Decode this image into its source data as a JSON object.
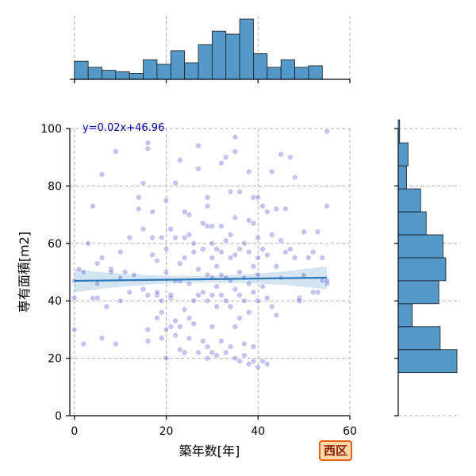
{
  "badge": {
    "label": "西区",
    "color": "#e8611a"
  },
  "chart_data": {
    "type": "scatter",
    "xlabel": "築年数[年]",
    "ylabel": "専有面積[m2]",
    "xlim": [
      -1,
      60
    ],
    "ylim": [
      0,
      100
    ],
    "x_ticks": [
      0,
      20,
      40,
      60
    ],
    "y_ticks": [
      0,
      20,
      40,
      60,
      80,
      100
    ],
    "grid": true,
    "annotation": "y=0.02x+46.96",
    "regression": {
      "slope": 0.02,
      "intercept": 46.96,
      "x_range": [
        0,
        55
      ],
      "ci_halfwidth_edge": 4,
      "ci_halfwidth_center": 1.2
    },
    "point_color": "#3a3ac8",
    "line_color": "#2a78b8",
    "hist_color": "#5499c7",
    "x_hist": {
      "bin_width": 3,
      "start": 0,
      "counts": [
        12,
        8,
        6,
        5,
        4,
        13,
        10,
        19,
        11,
        23,
        32,
        30,
        40,
        17,
        8,
        13,
        8,
        9
      ]
    },
    "y_hist": {
      "bin_width": 8,
      "start": 15,
      "counts": [
        42,
        30,
        10,
        29,
        34,
        32,
        20,
        16,
        6,
        7,
        1
      ]
    },
    "points": [
      [
        0,
        30
      ],
      [
        0,
        47
      ],
      [
        0,
        41
      ],
      [
        1,
        51
      ],
      [
        2,
        25
      ],
      [
        2,
        50
      ],
      [
        3,
        60
      ],
      [
        4,
        41
      ],
      [
        4,
        73
      ],
      [
        5,
        46
      ],
      [
        5,
        53
      ],
      [
        5,
        41
      ],
      [
        6,
        84
      ],
      [
        6,
        55
      ],
      [
        6,
        27
      ],
      [
        7,
        38
      ],
      [
        8,
        51
      ],
      [
        8,
        50
      ],
      [
        9,
        25
      ],
      [
        9,
        92
      ],
      [
        10,
        57
      ],
      [
        10,
        40
      ],
      [
        10,
        48
      ],
      [
        11,
        50
      ],
      [
        12,
        43
      ],
      [
        12,
        62
      ],
      [
        13,
        49
      ],
      [
        14,
        72
      ],
      [
        14,
        76
      ],
      [
        15,
        65
      ],
      [
        15,
        81
      ],
      [
        15,
        44
      ],
      [
        16,
        42
      ],
      [
        16,
        30
      ],
      [
        16,
        93
      ],
      [
        16,
        95
      ],
      [
        16,
        26
      ],
      [
        17,
        62
      ],
      [
        17,
        71
      ],
      [
        17,
        56
      ],
      [
        18,
        54
      ],
      [
        18,
        42
      ],
      [
        18,
        34
      ],
      [
        18,
        43
      ],
      [
        19,
        36
      ],
      [
        19,
        62
      ],
      [
        19,
        27
      ],
      [
        19,
        40
      ],
      [
        20,
        75
      ],
      [
        20,
        58
      ],
      [
        20,
        30
      ],
      [
        20,
        20
      ],
      [
        20,
        50
      ],
      [
        21,
        65
      ],
      [
        21,
        41
      ],
      [
        21,
        42
      ],
      [
        21,
        31
      ],
      [
        22,
        81
      ],
      [
        22,
        62
      ],
      [
        22,
        47
      ],
      [
        22,
        33
      ],
      [
        22,
        28
      ],
      [
        23,
        89
      ],
      [
        23,
        31
      ],
      [
        23,
        53
      ],
      [
        23,
        47
      ],
      [
        23,
        23
      ],
      [
        24,
        71
      ],
      [
        24,
        62
      ],
      [
        24,
        55
      ],
      [
        24,
        37
      ],
      [
        24,
        22
      ],
      [
        25,
        63
      ],
      [
        25,
        70
      ],
      [
        25,
        46
      ],
      [
        25,
        27
      ],
      [
        25,
        34
      ],
      [
        26,
        57
      ],
      [
        26,
        60
      ],
      [
        26,
        40
      ],
      [
        26,
        32
      ],
      [
        27,
        94
      ],
      [
        27,
        86
      ],
      [
        27,
        51
      ],
      [
        27,
        42
      ],
      [
        27,
        22
      ],
      [
        28,
        67
      ],
      [
        28,
        58
      ],
      [
        28,
        43
      ],
      [
        28,
        26
      ],
      [
        29,
        76
      ],
      [
        29,
        73
      ],
      [
        29,
        66
      ],
      [
        29,
        49
      ],
      [
        29,
        40
      ],
      [
        29,
        24
      ],
      [
        29,
        20
      ],
      [
        30,
        66
      ],
      [
        30,
        55
      ],
      [
        30,
        60
      ],
      [
        30,
        48
      ],
      [
        30,
        42
      ],
      [
        30,
        31
      ],
      [
        30,
        22
      ],
      [
        31,
        58
      ],
      [
        31,
        52
      ],
      [
        31,
        45
      ],
      [
        31,
        38
      ],
      [
        31,
        21
      ],
      [
        32,
        88
      ],
      [
        32,
        66
      ],
      [
        32,
        57
      ],
      [
        32,
        49
      ],
      [
        32,
        42
      ],
      [
        32,
        26
      ],
      [
        33,
        90
      ],
      [
        33,
        61
      ],
      [
        33,
        48
      ],
      [
        33,
        40
      ],
      [
        33,
        22
      ],
      [
        34,
        78
      ],
      [
        34,
        63
      ],
      [
        34,
        55
      ],
      [
        34,
        47
      ],
      [
        34,
        38
      ],
      [
        34,
        24
      ],
      [
        35,
        97
      ],
      [
        35,
        92
      ],
      [
        35,
        69
      ],
      [
        35,
        56
      ],
      [
        35,
        44
      ],
      [
        35,
        31
      ],
      [
        35,
        20
      ],
      [
        36,
        78
      ],
      [
        36,
        58
      ],
      [
        36,
        50
      ],
      [
        36,
        42
      ],
      [
        36,
        34
      ],
      [
        36,
        19
      ],
      [
        37,
        60
      ],
      [
        37,
        48
      ],
      [
        37,
        40
      ],
      [
        37,
        25
      ],
      [
        37,
        21
      ],
      [
        38,
        85
      ],
      [
        38,
        68
      ],
      [
        38,
        57
      ],
      [
        38,
        46
      ],
      [
        38,
        36
      ],
      [
        38,
        18
      ],
      [
        39,
        76
      ],
      [
        39,
        67
      ],
      [
        39,
        52
      ],
      [
        39,
        43
      ],
      [
        39,
        24
      ],
      [
        39,
        19
      ],
      [
        40,
        76
      ],
      [
        40,
        62
      ],
      [
        40,
        55
      ],
      [
        40,
        49
      ],
      [
        40,
        40
      ],
      [
        40,
        17
      ],
      [
        41,
        73
      ],
      [
        41,
        58
      ],
      [
        41,
        45
      ],
      [
        41,
        19
      ],
      [
        42,
        71
      ],
      [
        42,
        56
      ],
      [
        42,
        41
      ],
      [
        42,
        18
      ],
      [
        43,
        85
      ],
      [
        43,
        63
      ],
      [
        43,
        38
      ],
      [
        44,
        72
      ],
      [
        44,
        52
      ],
      [
        44,
        35
      ],
      [
        45,
        91
      ],
      [
        45,
        61
      ],
      [
        45,
        48
      ],
      [
        46,
        72
      ],
      [
        46,
        57
      ],
      [
        47,
        90
      ],
      [
        47,
        58
      ],
      [
        48,
        83
      ],
      [
        48,
        55
      ],
      [
        49,
        41
      ],
      [
        49,
        40
      ],
      [
        50,
        64
      ],
      [
        50,
        49
      ],
      [
        51,
        55
      ],
      [
        52,
        43
      ],
      [
        52,
        57
      ],
      [
        53,
        64
      ],
      [
        53,
        43
      ],
      [
        54,
        55
      ],
      [
        54,
        47
      ],
      [
        55,
        46
      ],
      [
        55,
        73
      ],
      [
        55,
        99
      ],
      [
        55,
        47
      ]
    ]
  }
}
